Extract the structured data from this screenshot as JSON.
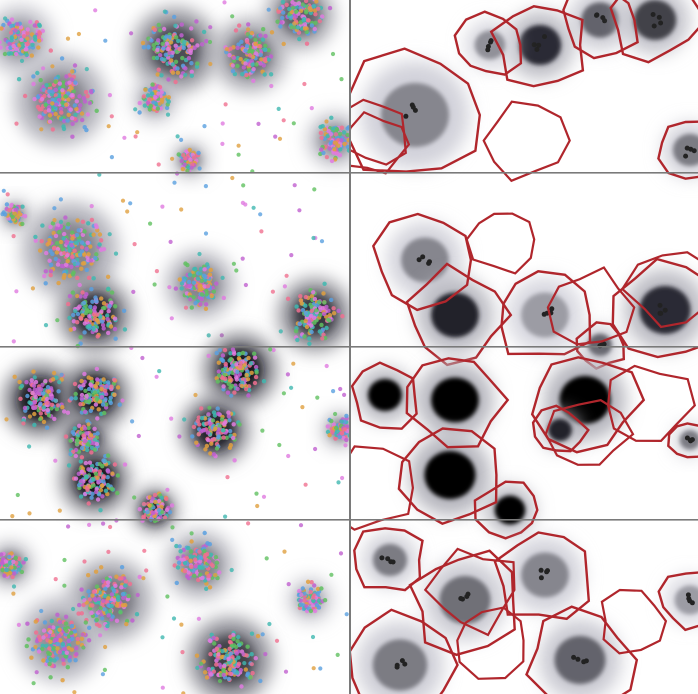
{
  "figure": {
    "rows": 4,
    "columns": 2,
    "panels": [
      {
        "row": 1,
        "left": "spot-overlay",
        "right": "cell-segmentation"
      },
      {
        "row": 2,
        "left": "spot-overlay",
        "right": "cell-segmentation"
      },
      {
        "row": 3,
        "left": "spot-overlay",
        "right": "cell-segmentation"
      },
      {
        "row": 4,
        "left": "spot-overlay",
        "right": "cell-segmentation"
      }
    ]
  },
  "colors": {
    "background": "#ffffff",
    "divider": "#7a7a7a",
    "nucleus_dark": "#101010",
    "nucleus_mid": "#5a5a66",
    "boundary": "#b0262c",
    "spot_palette": [
      "#e07be0",
      "#40b8b0",
      "#5aa0e0",
      "#e0a040",
      "#60c060",
      "#c060d0",
      "#f07090"
    ]
  }
}
